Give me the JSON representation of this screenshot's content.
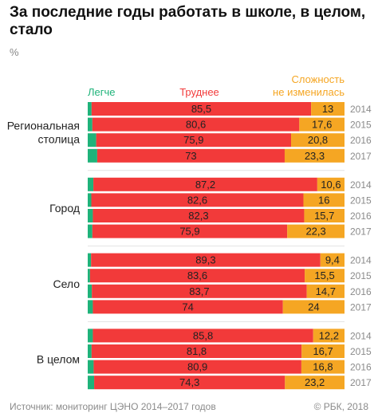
{
  "title": "За последние годы работать в школе, в целом, стало",
  "unit": "%",
  "source": "Источник: мониторинг ЦЭНО 2014–2017 годов",
  "credit": "© РБК, 2018",
  "colors": {
    "easier": "#1fb37a",
    "harder": "#f23a3a",
    "same": "#f5a623",
    "year": "#8a8a8a"
  },
  "chart_data": {
    "type": "bar",
    "stacked": true,
    "orientation": "horizontal",
    "legend": [
      {
        "key": "easier",
        "label": "Легче"
      },
      {
        "key": "harder",
        "label": "Труднее"
      },
      {
        "key": "same",
        "label": "Сложность не изменилась",
        "lines": [
          "Сложность",
          "не изменилась"
        ]
      }
    ],
    "groups": [
      {
        "label": "Региональная столица",
        "label_lines": [
          "Региональная",
          "столица"
        ],
        "rows": [
          {
            "year": "2014",
            "easier": 1.5,
            "harder": 85.5,
            "same": 13
          },
          {
            "year": "2015",
            "easier": 1.8,
            "harder": 80.6,
            "same": 17.6
          },
          {
            "year": "2016",
            "easier": 3.3,
            "harder": 75.9,
            "same": 20.8
          },
          {
            "year": "2017",
            "easier": 3.7,
            "harder": 73,
            "same": 23.3
          }
        ]
      },
      {
        "label": "Город",
        "label_lines": [
          "Город"
        ],
        "rows": [
          {
            "year": "2014",
            "easier": 2.2,
            "harder": 87.2,
            "same": 10.6
          },
          {
            "year": "2015",
            "easier": 1.4,
            "harder": 82.6,
            "same": 16
          },
          {
            "year": "2016",
            "easier": 2,
            "harder": 82.3,
            "same": 15.7
          },
          {
            "year": "2017",
            "easier": 1.8,
            "harder": 75.9,
            "same": 22.3
          }
        ]
      },
      {
        "label": "Село",
        "label_lines": [
          "Село"
        ],
        "rows": [
          {
            "year": "2014",
            "easier": 1.3,
            "harder": 89.3,
            "same": 9.4
          },
          {
            "year": "2015",
            "easier": 0.9,
            "harder": 83.6,
            "same": 15.5
          },
          {
            "year": "2016",
            "easier": 1.6,
            "harder": 83.7,
            "same": 14.7
          },
          {
            "year": "2017",
            "easier": 2,
            "harder": 74,
            "same": 24
          }
        ]
      },
      {
        "label": "В целом",
        "label_lines": [
          "В целом"
        ],
        "rows": [
          {
            "year": "2014",
            "easier": 2,
            "harder": 85.8,
            "same": 12.2
          },
          {
            "year": "2015",
            "easier": 1.5,
            "harder": 81.8,
            "same": 16.7
          },
          {
            "year": "2016",
            "easier": 2.3,
            "harder": 80.9,
            "same": 16.8
          },
          {
            "year": "2017",
            "easier": 2.5,
            "harder": 74.3,
            "same": 23.2
          }
        ]
      }
    ],
    "xlim": [
      0,
      100
    ]
  }
}
